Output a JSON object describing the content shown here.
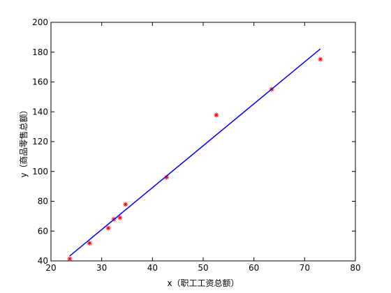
{
  "chart_data": {
    "type": "scatter",
    "x_label": "x（职工工资总额）",
    "y_label": "y（商品零售总额）",
    "xlim": [
      20,
      80
    ],
    "xticks": [
      20,
      30,
      40,
      50,
      60,
      70,
      80
    ],
    "ylim": [
      40,
      200
    ],
    "yticks": [
      40,
      60,
      80,
      100,
      120,
      140,
      160,
      180,
      200
    ],
    "series": [
      {
        "mode": "markers",
        "color": "#ff0000",
        "x": [
          23.7,
          27.6,
          31.3,
          32.4,
          33.6,
          34.7,
          42.8,
          52.6,
          63.5,
          73.1
        ],
        "values": [
          41.4,
          51.9,
          62,
          68,
          69,
          77.9,
          96.1,
          137.8,
          155.1,
          175.2
        ]
      },
      {
        "mode": "line",
        "color": "#0000ff",
        "x": [
          23.7,
          73.1
        ],
        "values": [
          43.3,
          182.2
        ]
      }
    ]
  }
}
